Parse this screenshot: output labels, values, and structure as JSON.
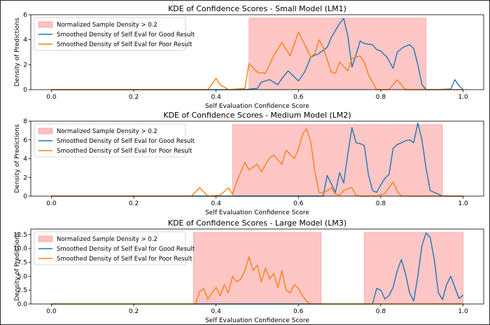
{
  "chart_data": [
    {
      "type": "line",
      "title": "KDE of Confidence Scores - Small Model (LM1)",
      "xlabel": "Self Evaluation Confidence Score",
      "ylabel": "Density of Predictions",
      "xlim": [
        -0.05,
        1.05
      ],
      "ylim": [
        0,
        6
      ],
      "xticks": [
        "0.0",
        "0.2",
        "0.4",
        "0.6",
        "0.8",
        "1.0"
      ],
      "yticks": [
        "0",
        "2",
        "4",
        "6"
      ],
      "legend_placement": "top-left",
      "legend": [
        "Normalized Sample Density > 0.2",
        "Smoothed Density of Self Eval for Good Result",
        "Smoothed Density of Self Eval for Poor Result"
      ],
      "regions": [
        [
          0.48,
          0.91
        ]
      ],
      "series": [
        {
          "name": "Smoothed Density of Self Eval for Good Result",
          "color": "#1f77b4",
          "x": [
            0.0,
            0.47,
            0.5,
            0.51,
            0.53,
            0.55,
            0.56,
            0.575,
            0.6,
            0.615,
            0.63,
            0.65,
            0.67,
            0.68,
            0.7,
            0.71,
            0.72,
            0.73,
            0.74,
            0.75,
            0.76,
            0.78,
            0.79,
            0.8,
            0.815,
            0.83,
            0.84,
            0.855,
            0.87,
            0.88,
            0.89,
            0.9,
            0.91,
            0.93,
            0.97,
            0.98,
            0.99,
            1.0
          ],
          "y": [
            0,
            0,
            0.1,
            0.6,
            0.8,
            0.4,
            0.9,
            1.5,
            0.7,
            1.4,
            2.6,
            2.9,
            3.4,
            4.2,
            5.3,
            5.7,
            4.3,
            1.8,
            2.8,
            3.9,
            3.7,
            3.6,
            3.2,
            3.1,
            2.6,
            1.7,
            3.0,
            3.4,
            3.6,
            3.3,
            2.0,
            0.4,
            0,
            0,
            0.05,
            0.8,
            0.3,
            0
          ]
        },
        {
          "name": "Smoothed Density of Self Eval for Poor Result",
          "color": "#ff7f0e",
          "x": [
            0.0,
            0.38,
            0.4,
            0.41,
            0.43,
            0.47,
            0.48,
            0.5,
            0.52,
            0.54,
            0.56,
            0.58,
            0.6,
            0.62,
            0.63,
            0.64,
            0.65,
            0.66,
            0.67,
            0.68,
            0.69,
            0.7,
            0.72,
            0.73,
            0.75,
            0.76,
            0.77,
            0.79,
            0.82,
            0.84,
            0.86,
            0.88,
            1.0
          ],
          "y": [
            0,
            0,
            0.9,
            0.4,
            0,
            0.1,
            2.1,
            1.4,
            1.3,
            2.7,
            3.8,
            2.7,
            4.6,
            3.3,
            2.6,
            2.9,
            4.0,
            3.4,
            2.4,
            1.4,
            1.3,
            2.2,
            1.5,
            2.5,
            2.7,
            2.2,
            1.2,
            0,
            0,
            0.8,
            0,
            0,
            0
          ]
        }
      ]
    },
    {
      "type": "line",
      "title": "KDE of Confidence Scores - Medium Model (LM2)",
      "xlabel": "Self Evaluation Confidence Score",
      "ylabel": "Density of Predictions",
      "xlim": [
        -0.05,
        1.05
      ],
      "ylim": [
        0,
        8
      ],
      "xticks": [
        "0.0",
        "0.2",
        "0.4",
        "0.6",
        "0.8",
        "1.0"
      ],
      "yticks": [
        "0",
        "2",
        "4",
        "6",
        "8"
      ],
      "legend_placement": "top-left",
      "legend": [
        "Normalized Sample Density > 0.2",
        "Smoothed Density of Self Eval for Good Result",
        "Smoothed Density of Self Eval for Poor Result"
      ],
      "regions": [
        [
          0.44,
          0.95
        ]
      ],
      "series": [
        {
          "name": "Smoothed Density of Self Eval for Good Result",
          "color": "#1f77b4",
          "x": [
            0.0,
            0.66,
            0.67,
            0.69,
            0.7,
            0.71,
            0.72,
            0.73,
            0.74,
            0.75,
            0.76,
            0.77,
            0.78,
            0.79,
            0.8,
            0.81,
            0.82,
            0.83,
            0.84,
            0.86,
            0.87,
            0.88,
            0.89,
            0.9,
            0.91,
            0.92,
            0.95,
            1.0
          ],
          "y": [
            0,
            0,
            2.2,
            0.4,
            2.5,
            1.4,
            4.5,
            7.3,
            5.7,
            5.6,
            5.4,
            2.3,
            0.6,
            0.4,
            1.2,
            1.9,
            2.3,
            5.1,
            5.5,
            5.9,
            6.0,
            5.7,
            7.8,
            6.0,
            3.0,
            0.6,
            0,
            0
          ]
        },
        {
          "name": "Smoothed Density of Self Eval for Poor Result",
          "color": "#ff7f0e",
          "x": [
            0.0,
            0.34,
            0.36,
            0.38,
            0.41,
            0.43,
            0.44,
            0.45,
            0.47,
            0.48,
            0.5,
            0.51,
            0.53,
            0.54,
            0.56,
            0.57,
            0.59,
            0.6,
            0.61,
            0.62,
            0.63,
            0.64,
            0.65,
            0.66,
            0.67,
            0.68,
            0.69,
            0.7,
            0.71,
            0.72,
            0.73,
            0.74,
            0.75,
            0.76,
            0.77,
            0.79,
            0.81,
            0.83,
            0.84,
            0.85,
            1.0
          ],
          "y": [
            0,
            0,
            0.9,
            0,
            0.1,
            0.9,
            0.2,
            1.5,
            3.6,
            2.8,
            3.4,
            2.6,
            4.1,
            4.4,
            3.4,
            4.9,
            4.0,
            5.0,
            6.6,
            7.2,
            5.8,
            2.6,
            0.4,
            0.3,
            0.6,
            0.9,
            0.2,
            0.1,
            0.6,
            0.8,
            0.9,
            0.1,
            0,
            0,
            0,
            0,
            0.3,
            1.5,
            0.5,
            0,
            0
          ]
        }
      ]
    },
    {
      "type": "line",
      "title": "KDE of Confidence Scores - Large Model (LM3)",
      "xlabel": "Self Evaluation Confidence Score",
      "ylabel": "Density of Predictions",
      "xlim": [
        -0.05,
        1.05
      ],
      "ylim": [
        0,
        13.5
      ],
      "xticks": [
        "0.0",
        "0.2",
        "0.4",
        "0.6",
        "0.8",
        "1.0"
      ],
      "yticks": [
        "0.0",
        "2.5",
        "5.0",
        "7.5",
        "10.0",
        "12.5"
      ],
      "legend_placement": "top-left",
      "legend": [
        "Normalized Sample Density > 0.2",
        "Smoothed Density of Self Eval for Good Result",
        "Smoothed Density of Self Eval for Poor Result"
      ],
      "regions": [
        [
          0.345,
          0.655
        ],
        [
          0.76,
          1.0
        ]
      ],
      "series": [
        {
          "name": "Smoothed Density of Self Eval for Good Result",
          "color": "#1f77b4",
          "x": [
            0.0,
            0.78,
            0.79,
            0.8,
            0.81,
            0.82,
            0.83,
            0.84,
            0.85,
            0.86,
            0.87,
            0.88,
            0.89,
            0.9,
            0.91,
            0.92,
            0.93,
            0.94,
            0.95,
            0.96,
            0.97,
            0.98,
            0.99,
            1.0
          ],
          "y": [
            0,
            0,
            2.8,
            2.5,
            0.9,
            1.5,
            3.0,
            6.0,
            8.0,
            5.5,
            2.0,
            0.5,
            5.0,
            10.5,
            12.8,
            12.0,
            8.0,
            2.0,
            0.8,
            3.5,
            5.0,
            3.0,
            1.0,
            1.6
          ]
        },
        {
          "name": "Smoothed Density of Self Eval for Poor Result",
          "color": "#ff7f0e",
          "x": [
            0.0,
            0.35,
            0.36,
            0.37,
            0.38,
            0.39,
            0.4,
            0.41,
            0.42,
            0.43,
            0.44,
            0.45,
            0.46,
            0.47,
            0.48,
            0.49,
            0.5,
            0.51,
            0.52,
            0.53,
            0.54,
            0.55,
            0.56,
            0.57,
            0.58,
            0.59,
            0.6,
            0.61,
            0.62,
            0.63,
            1.0
          ],
          "y": [
            0,
            0,
            2.2,
            2.8,
            0.8,
            2.0,
            3.0,
            1.5,
            3.5,
            2.0,
            5.0,
            4.0,
            4.5,
            6.0,
            8.5,
            6.0,
            7.0,
            4.0,
            6.5,
            4.5,
            5.5,
            3.0,
            6.0,
            2.5,
            2.0,
            3.5,
            2.8,
            1.5,
            0.5,
            0,
            0
          ]
        }
      ]
    }
  ]
}
